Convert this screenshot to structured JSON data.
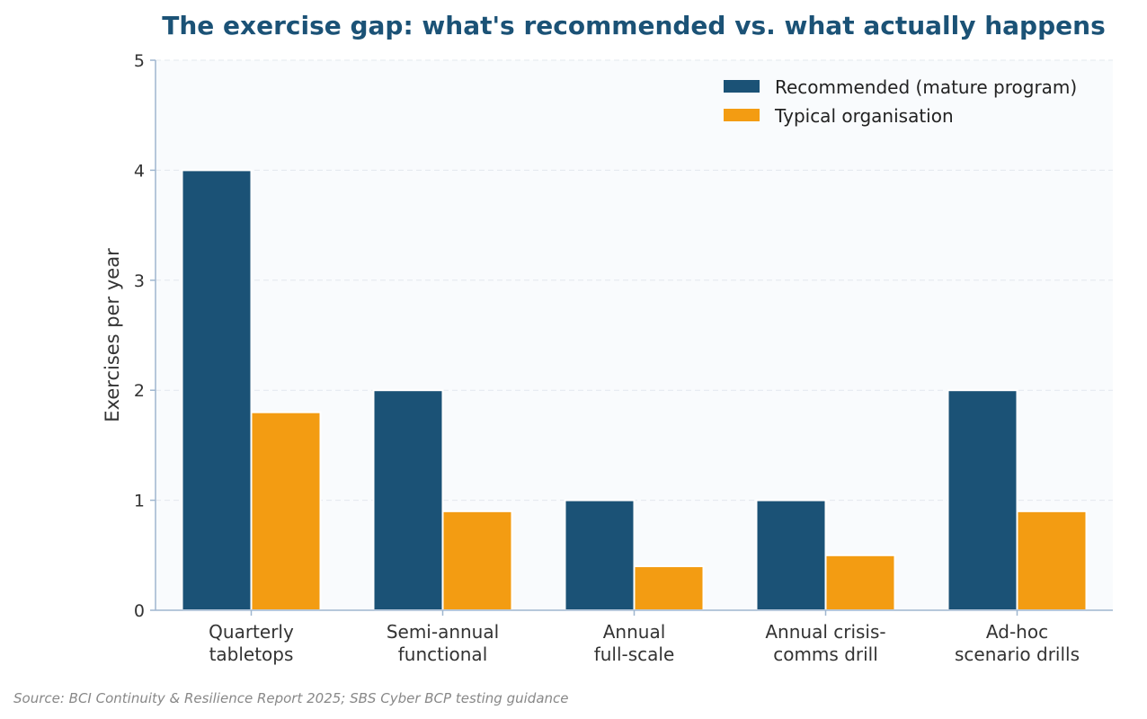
{
  "chart_data": {
    "type": "bar",
    "title": "The exercise gap: what's recommended vs. what actually happens",
    "ylabel": "Exercises per year",
    "xlabel": "",
    "ylim": [
      0,
      5
    ],
    "yticks": [
      "0",
      "1",
      "2",
      "3",
      "4",
      "5"
    ],
    "categories": [
      [
        "Quarterly",
        "tabletops"
      ],
      [
        "Semi-annual",
        "functional"
      ],
      [
        "Annual",
        "full-scale"
      ],
      [
        "Annual crisis-",
        "comms drill"
      ],
      [
        "Ad-hoc",
        "scenario drills"
      ]
    ],
    "series": [
      {
        "name": "Recommended (mature program)",
        "color": "#1b5276",
        "values": [
          4,
          2,
          1,
          1,
          2
        ]
      },
      {
        "name": "Typical organisation",
        "color": "#f39c12",
        "values": [
          1.8,
          0.9,
          0.4,
          0.5,
          0.9
        ]
      }
    ],
    "grid": true,
    "legend_position": "top-right",
    "source": "Source: BCI Continuity & Resilience Report 2025; SBS Cyber BCP testing guidance"
  }
}
